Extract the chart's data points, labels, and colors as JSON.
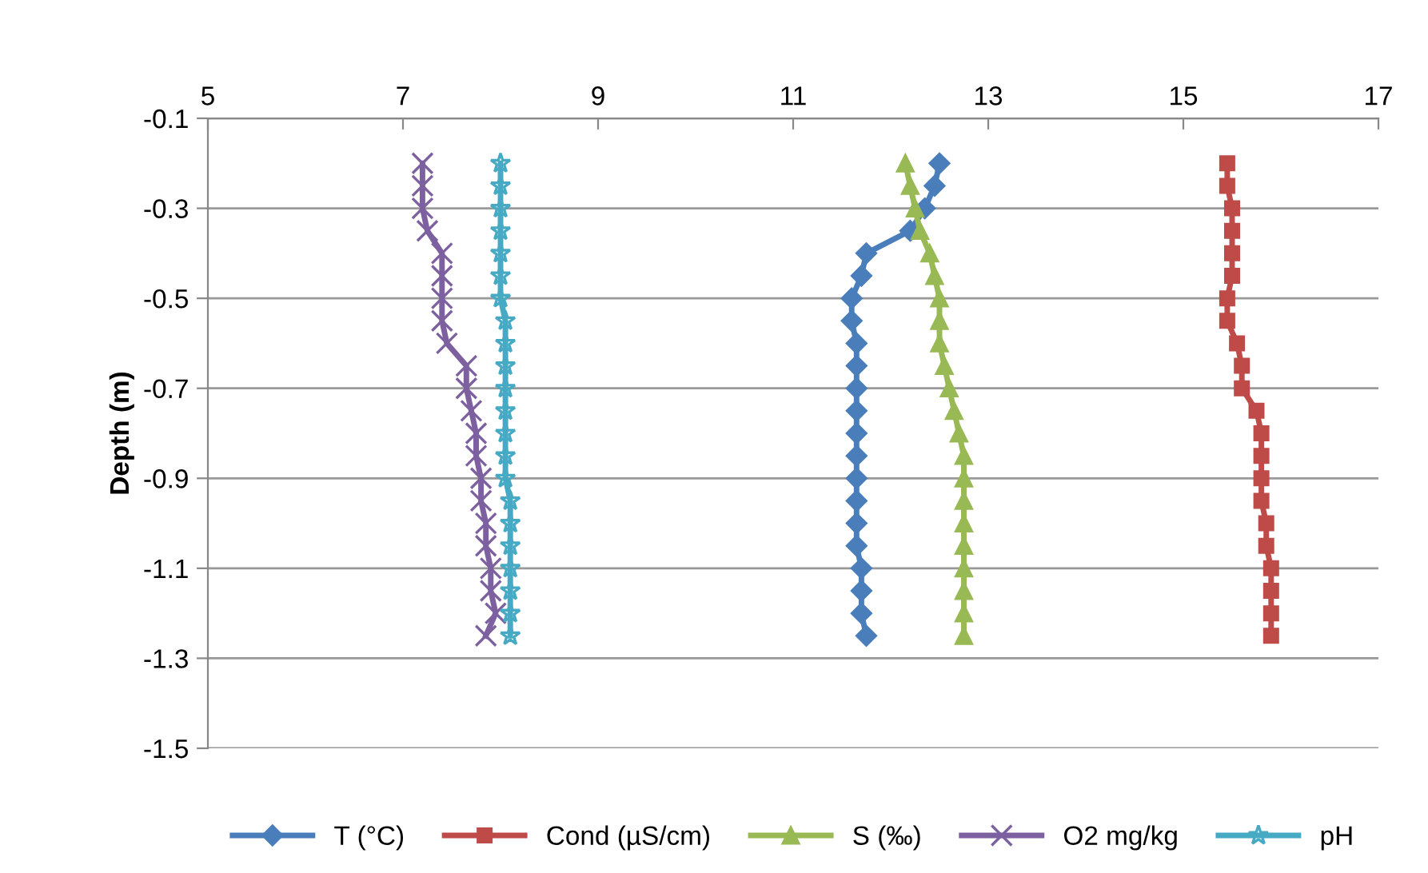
{
  "chart_data": {
    "type": "line",
    "ylabel": "Depth (m)",
    "xlim": [
      5,
      17
    ],
    "xticks": [
      5,
      7,
      9,
      11,
      13,
      15,
      17
    ],
    "ylim": [
      -1.5,
      -0.1
    ],
    "yticks": [
      -0.1,
      -0.3,
      -0.5,
      -0.7,
      -0.9,
      -1.1,
      -1.3,
      -1.5
    ],
    "grid": "y",
    "legend": "bottom",
    "series": [
      {
        "name": "T (°C)",
        "color": "#4a7ebb",
        "marker": "diamond",
        "x": [
          12.5,
          12.45,
          12.35,
          12.2,
          11.75,
          11.7,
          11.6,
          11.6,
          11.65,
          11.65,
          11.65,
          11.65,
          11.65,
          11.65,
          11.65,
          11.65,
          11.65,
          11.65,
          11.7,
          11.7,
          11.7,
          11.75
        ],
        "values": [
          -0.2,
          -0.25,
          -0.3,
          -0.35,
          -0.4,
          -0.45,
          -0.5,
          -0.55,
          -0.6,
          -0.65,
          -0.7,
          -0.75,
          -0.8,
          -0.85,
          -0.9,
          -0.95,
          -1.0,
          -1.05,
          -1.1,
          -1.15,
          -1.2,
          -1.25
        ]
      },
      {
        "name": "Cond (µS/cm)",
        "color": "#be4b48",
        "marker": "square",
        "x": [
          15.45,
          15.45,
          15.5,
          15.5,
          15.5,
          15.5,
          15.45,
          15.45,
          15.55,
          15.6,
          15.6,
          15.75,
          15.8,
          15.8,
          15.8,
          15.8,
          15.85,
          15.85,
          15.9,
          15.9,
          15.9,
          15.9
        ],
        "values": [
          -0.2,
          -0.25,
          -0.3,
          -0.35,
          -0.4,
          -0.45,
          -0.5,
          -0.55,
          -0.6,
          -0.65,
          -0.7,
          -0.75,
          -0.8,
          -0.85,
          -0.9,
          -0.95,
          -1.0,
          -1.05,
          -1.1,
          -1.15,
          -1.2,
          -1.25
        ]
      },
      {
        "name": "S (‰)",
        "color": "#98b954",
        "marker": "triangle",
        "x": [
          12.15,
          12.2,
          12.25,
          12.3,
          12.4,
          12.45,
          12.5,
          12.5,
          12.5,
          12.55,
          12.6,
          12.65,
          12.7,
          12.75,
          12.75,
          12.75,
          12.75,
          12.75,
          12.75,
          12.75,
          12.75,
          12.75
        ],
        "values": [
          -0.2,
          -0.25,
          -0.3,
          -0.35,
          -0.4,
          -0.45,
          -0.5,
          -0.55,
          -0.6,
          -0.65,
          -0.7,
          -0.75,
          -0.8,
          -0.85,
          -0.9,
          -0.95,
          -1.0,
          -1.05,
          -1.1,
          -1.15,
          -1.2,
          -1.25
        ]
      },
      {
        "name": "O2 mg/kg",
        "color": "#7d60a0",
        "marker": "cross",
        "x": [
          7.2,
          7.2,
          7.2,
          7.25,
          7.4,
          7.4,
          7.4,
          7.4,
          7.45,
          7.65,
          7.65,
          7.7,
          7.75,
          7.75,
          7.8,
          7.8,
          7.85,
          7.85,
          7.9,
          7.9,
          7.95,
          7.85
        ],
        "values": [
          -0.2,
          -0.25,
          -0.3,
          -0.35,
          -0.4,
          -0.45,
          -0.5,
          -0.55,
          -0.6,
          -0.65,
          -0.7,
          -0.75,
          -0.8,
          -0.85,
          -0.9,
          -0.95,
          -1.0,
          -1.05,
          -1.1,
          -1.15,
          -1.2,
          -1.25
        ]
      },
      {
        "name": "pH",
        "color": "#46aac5",
        "marker": "star",
        "x": [
          8.0,
          8.0,
          8.0,
          8.0,
          8.0,
          8.0,
          8.0,
          8.05,
          8.05,
          8.05,
          8.05,
          8.05,
          8.05,
          8.05,
          8.05,
          8.1,
          8.1,
          8.1,
          8.1,
          8.1,
          8.1,
          8.1
        ],
        "values": [
          -0.2,
          -0.25,
          -0.3,
          -0.35,
          -0.4,
          -0.45,
          -0.5,
          -0.55,
          -0.6,
          -0.65,
          -0.7,
          -0.75,
          -0.8,
          -0.85,
          -0.9,
          -0.95,
          -1.0,
          -1.05,
          -1.1,
          -1.15,
          -1.2,
          -1.25
        ]
      }
    ]
  }
}
